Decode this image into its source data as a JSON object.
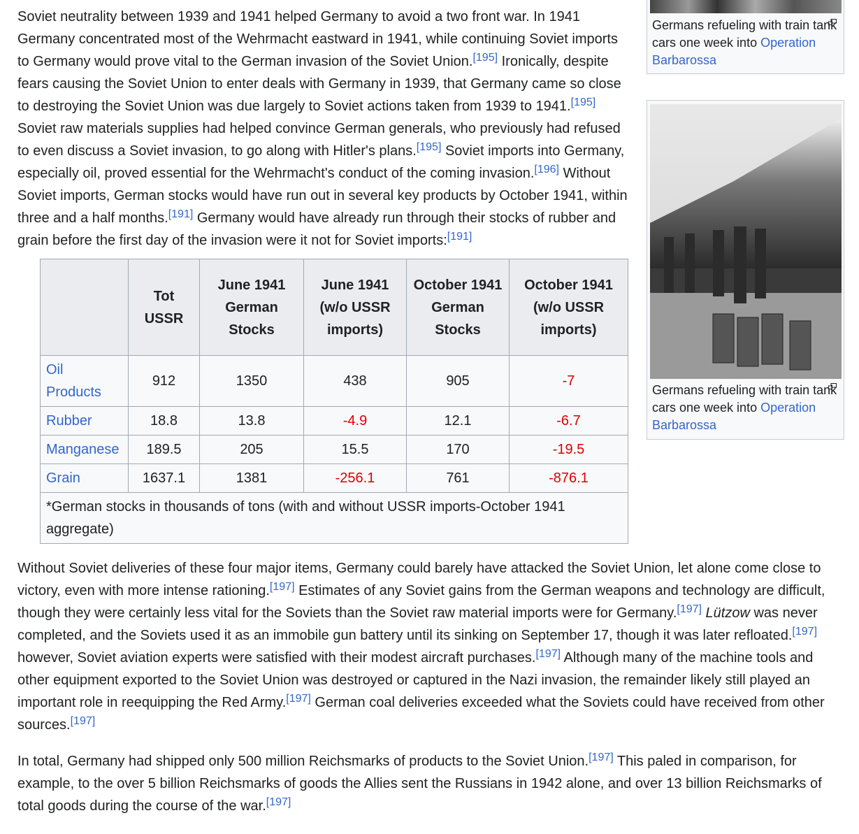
{
  "paragraphs": [
    [
      {
        "t": "Soviet neutrality between 1939 and 1941 helped Germany to avoid a two front war. In 1941 Germany concentrated most of the Wehrmacht eastward in 1941, while continuing Soviet imports to Germany would prove vital to the German invasion of the Soviet Union."
      },
      {
        "ref": "[195]"
      },
      {
        "t": " Ironically, despite fears causing the Soviet Union to enter deals with Germany in 1939, that Germany came so close to destroying the Soviet Union was due largely to Soviet actions taken from 1939 to 1941."
      },
      {
        "ref": "[195]"
      },
      {
        "t": " Soviet raw materials supplies had helped convince German generals, who previously had refused to even discuss a Soviet invasion, to go along with Hitler's plans."
      },
      {
        "ref": "[195]"
      },
      {
        "t": " Soviet imports into Germany, especially oil, proved essential for the Wehrmacht's conduct of the coming invasion."
      },
      {
        "ref": "[196]"
      },
      {
        "t": " Without Soviet imports, German stocks would have run out in several key products by October 1941, within three and a half months."
      },
      {
        "ref": "[191]"
      },
      {
        "t": " Germany would have already run through their stocks of rubber and grain before the first day of the invasion were it not for Soviet imports:"
      },
      {
        "ref": "[191]"
      }
    ],
    [
      {
        "t": "Without Soviet deliveries of these four major items, Germany could barely have attacked the Soviet Union, let alone come close to victory, even with more intense rationing."
      },
      {
        "ref": "[197]"
      },
      {
        "t": " Estimates of any Soviet gains from the German weapons and technology are difficult, though they were certainly less vital for the Soviets than the Soviet raw material imports were for Germany."
      },
      {
        "ref": "[197]"
      },
      {
        "t": " "
      },
      {
        "i": "Lützow"
      },
      {
        "t": " was never completed, and the Soviets used it as an immobile gun battery until its sinking on September 17, though it was later refloated."
      },
      {
        "ref": "[197]"
      },
      {
        "t": " however, Soviet aviation experts were satisfied with their modest aircraft purchases."
      },
      {
        "ref": "[197]"
      },
      {
        "t": " Although many of the machine tools and other equipment exported to the Soviet Union was destroyed or captured in the Nazi invasion, the remainder likely still played an important role in reequipping the Red Army."
      },
      {
        "ref": "[197]"
      },
      {
        "t": " German coal deliveries exceeded what the Soviets could have received from other sources."
      },
      {
        "ref": "[197]"
      }
    ],
    [
      {
        "t": "In total, Germany had shipped only 500 million Reichsmarks of products to the Soviet Union."
      },
      {
        "ref": "[197]"
      },
      {
        "t": " This paled in comparison, for example, to the over 5 billion Reichsmarks of goods the Allies sent the Russians in 1942 alone, and over 13 billion Reichsmarks of total goods during the course of the war."
      },
      {
        "ref": "[197]"
      }
    ]
  ],
  "table": {
    "headers": [
      "",
      "Tot USSR",
      "June 1941 German Stocks",
      "June 1941 (w/o USSR imports)",
      "October 1941 German Stocks",
      "October 1941 (w/o USSR imports)"
    ],
    "rows": [
      {
        "label": "Oil Products",
        "cells": [
          "912",
          "1350",
          "438",
          "905",
          "-7"
        ]
      },
      {
        "label": "Rubber",
        "cells": [
          "18.8",
          "13.8",
          "-4.9",
          "12.1",
          "-6.7"
        ]
      },
      {
        "label": "Manganese",
        "cells": [
          "189.5",
          "205",
          "15.5",
          "170",
          "-19.5"
        ]
      },
      {
        "label": "Grain",
        "cells": [
          "1637.1",
          "1381",
          "-256.1",
          "761",
          "-876.1"
        ]
      }
    ],
    "note": "*German stocks in thousands of tons (with and without USSR imports-October 1941 aggregate)",
    "negative_color": "#dd0000"
  },
  "figures": [
    {
      "caption_text": "Germans refueling with train tank cars one week into ",
      "caption_link": "Operation Barbarossa"
    },
    {
      "caption_text": "Germans refueling with train tank cars one week into ",
      "caption_link": "Operation Barbarossa"
    }
  ],
  "colors": {
    "link": "#3366cc",
    "text": "#202122",
    "table_header": "#eaecf0",
    "table_bg": "#f8f9fa"
  }
}
